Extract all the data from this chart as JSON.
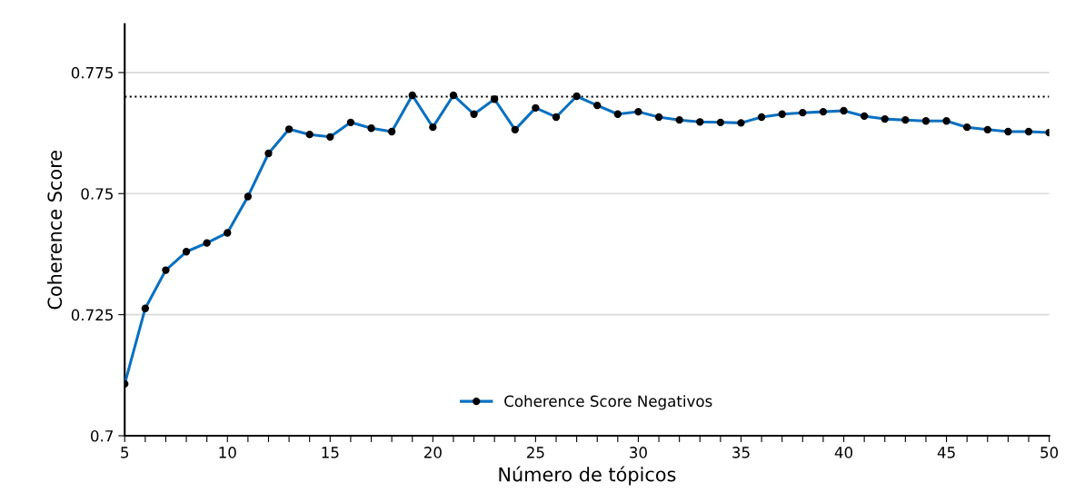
{
  "chart_data": {
    "type": "line",
    "xlabel": "Número de tópicos",
    "ylabel": "Coherence Score",
    "x": [
      5,
      6,
      7,
      8,
      9,
      10,
      11,
      12,
      13,
      14,
      15,
      16,
      17,
      18,
      19,
      20,
      21,
      22,
      23,
      24,
      25,
      26,
      27,
      28,
      29,
      30,
      31,
      32,
      33,
      34,
      35,
      36,
      37,
      38,
      39,
      40,
      41,
      42,
      43,
      44,
      45,
      46,
      47,
      48,
      49,
      50
    ],
    "series": [
      {
        "name": "Coherence Score Negativos",
        "color": "#0a70c0",
        "values": [
          0.7107,
          0.7263,
          0.7342,
          0.738,
          0.7398,
          0.7419,
          0.7494,
          0.7583,
          0.7633,
          0.7622,
          0.7617,
          0.7647,
          0.7635,
          0.7628,
          0.7703,
          0.7637,
          0.7703,
          0.7664,
          0.7695,
          0.7632,
          0.7677,
          0.7658,
          0.7701,
          0.7682,
          0.7664,
          0.7669,
          0.7658,
          0.7652,
          0.7648,
          0.7647,
          0.7646,
          0.7658,
          0.7664,
          0.7667,
          0.7669,
          0.7671,
          0.766,
          0.7654,
          0.7652,
          0.765,
          0.765,
          0.7637,
          0.7632,
          0.7628,
          0.7628,
          0.7626
        ]
      }
    ],
    "xlim": [
      5,
      50
    ],
    "xticks": [
      5,
      {
        "value": 6,
        "label": null
      },
      {
        "value": 7,
        "label": null
      },
      {
        "value": 8,
        "label": null
      },
      {
        "value": 9,
        "label": null
      },
      10,
      {
        "value": 11,
        "label": null
      },
      {
        "value": 12,
        "label": null
      },
      {
        "value": 13,
        "label": null
      },
      {
        "value": 14,
        "label": null
      },
      15,
      {
        "value": 16,
        "label": null
      },
      {
        "value": 17,
        "label": null
      },
      {
        "value": 18,
        "label": null
      },
      {
        "value": 19,
        "label": null
      },
      20,
      {
        "value": 21,
        "label": null
      },
      {
        "value": 22,
        "label": null
      },
      {
        "value": 23,
        "label": null
      },
      {
        "value": 24,
        "label": null
      },
      25,
      {
        "value": 26,
        "label": null
      },
      {
        "value": 27,
        "label": null
      },
      {
        "value": 28,
        "label": null
      },
      {
        "value": 29,
        "label": null
      },
      30,
      {
        "value": 31,
        "label": null
      },
      {
        "value": 32,
        "label": null
      },
      {
        "value": 33,
        "label": null
      },
      {
        "value": 34,
        "label": null
      },
      35,
      {
        "value": 36,
        "label": null
      },
      {
        "value": 37,
        "label": null
      },
      {
        "value": 38,
        "label": null
      },
      {
        "value": 39,
        "label": null
      },
      40,
      {
        "value": 41,
        "label": null
      },
      {
        "value": 42,
        "label": null
      },
      {
        "value": 43,
        "label": null
      },
      {
        "value": 44,
        "label": null
      },
      45,
      {
        "value": 46,
        "label": null
      },
      {
        "value": 47,
        "label": null
      },
      {
        "value": 48,
        "label": null
      },
      {
        "value": 49,
        "label": null
      },
      50
    ],
    "ylim": [
      0.7,
      0.785
    ],
    "yticks": [
      0.7,
      0.725,
      0.75,
      0.775
    ],
    "ref_lines": [
      {
        "axis": "y",
        "value": 0.77,
        "color": "#000000",
        "line_style": "dotted"
      }
    ],
    "grid": "y",
    "legend": "bottom",
    "marker": "circle",
    "line_style": "solid"
  }
}
